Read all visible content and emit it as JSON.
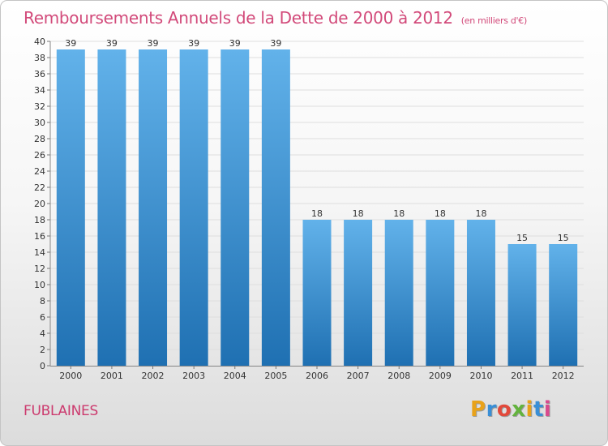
{
  "title": "Remboursements Annuels de la Dette de 2000 à 2012",
  "subtitle": "(en milliers d'€)",
  "commune": "FUBLAINES",
  "logo": {
    "letters": [
      "P",
      "r",
      "o",
      "x",
      "i",
      "t",
      "i"
    ],
    "colors": [
      "#e8a21a",
      "#3a8fd6",
      "#e24a3c",
      "#63b33d",
      "#e8a21a",
      "#3a8fd6",
      "#d84a8e"
    ]
  },
  "colors": {
    "bar_top": "#62b2ea",
    "bar_bottom": "#1f70b2",
    "title": "#d24a7a",
    "axis_text": "#333333"
  },
  "chart_data": {
    "type": "bar",
    "categories": [
      "2000",
      "2001",
      "2002",
      "2003",
      "2004",
      "2005",
      "2006",
      "2007",
      "2008",
      "2009",
      "2010",
      "2011",
      "2012"
    ],
    "values": [
      39,
      39,
      39,
      39,
      39,
      39,
      18,
      18,
      18,
      18,
      18,
      15,
      15
    ],
    "ylim": [
      0,
      40
    ],
    "yticks": [
      0,
      2,
      4,
      6,
      8,
      10,
      12,
      14,
      16,
      18,
      20,
      22,
      24,
      26,
      28,
      30,
      32,
      34,
      36,
      38,
      40
    ],
    "grid": true,
    "xlabel": "",
    "ylabel": ""
  }
}
